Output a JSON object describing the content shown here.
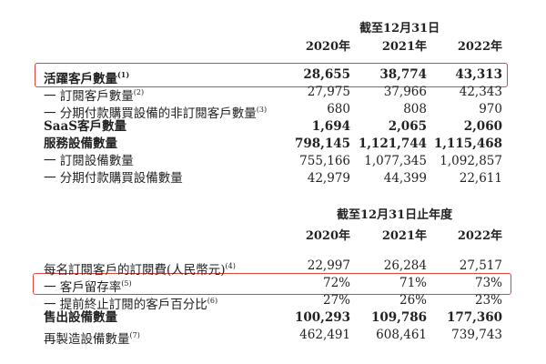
{
  "section1": {
    "header": "截至12月31日",
    "years": [
      "2020年",
      "2021年",
      "2022年"
    ],
    "rows": [
      {
        "label": "活躍客戶數量",
        "note": "(1)",
        "values": [
          "28,655",
          "38,774",
          "43,313"
        ],
        "bold": true,
        "highlighted": true
      },
      {
        "label": "一 訂閱客戶數量",
        "note": "(2)",
        "values": [
          "27,975",
          "37,966",
          "42,343"
        ],
        "bold": false
      },
      {
        "label": "一 分期付款購買設備的非訂閱客戶數量",
        "note": "(3)",
        "values": [
          "680",
          "808",
          "970"
        ],
        "bold": false
      },
      {
        "label": "SaaS客戶數量",
        "note": "",
        "values": [
          "1,694",
          "2,065",
          "2,060"
        ],
        "bold": true
      },
      {
        "label": "服務設備數量",
        "note": "",
        "values": [
          "798,145",
          "1,121,744",
          "1,115,468"
        ],
        "bold": true
      },
      {
        "label": "一 訂閱設備數量",
        "note": "",
        "values": [
          "755,166",
          "1,077,345",
          "1,092,857"
        ],
        "bold": false
      },
      {
        "label": "一 分期付款購買設備數量",
        "note": "",
        "values": [
          "42,979",
          "44,399",
          "22,611"
        ],
        "bold": false
      }
    ]
  },
  "section2": {
    "header": "截至12月31日止年度",
    "years": [
      "2020年",
      "2021年",
      "2022年"
    ],
    "rows": [
      {
        "label": "每名訂閱客戶的訂閱費(人民幣元)",
        "note": "(4)",
        "values": [
          "22,997",
          "26,284",
          "27,517"
        ],
        "bold": false
      },
      {
        "label": "一 客戶留存率",
        "note": "(5)",
        "values": [
          "72%",
          "71%",
          "73%"
        ],
        "bold": false,
        "highlighted": true
      },
      {
        "label": "一 提前終止訂閱的客戶百分比",
        "note": "(6)",
        "values": [
          "27%",
          "26%",
          "23%"
        ],
        "bold": false
      },
      {
        "label": "售出設備數量",
        "note": "",
        "values": [
          "100,293",
          "109,786",
          "177,360"
        ],
        "bold": true
      },
      {
        "label": "再製造設備數量",
        "note": "(7)",
        "values": [
          "462,491",
          "608,461",
          "739,743"
        ],
        "bold": false
      }
    ]
  },
  "colors": {
    "highlight_border": "#e0443c",
    "text": "#222222"
  }
}
